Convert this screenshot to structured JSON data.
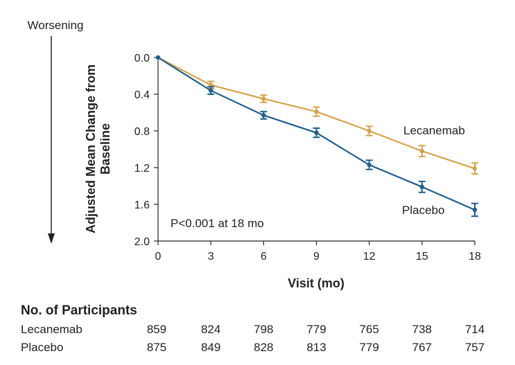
{
  "chart_data": {
    "type": "line",
    "x": [
      0,
      3,
      6,
      9,
      12,
      15,
      18
    ],
    "xlabel": "Visit (mo)",
    "ylabel_lines": [
      "Adjusted Mean Change from",
      "Baseline"
    ],
    "ylim": [
      0.0,
      2.0
    ],
    "yticks": [
      "0.0",
      "0.4",
      "0.8",
      "1.2",
      "1.6",
      "2.0"
    ],
    "y_inverted": true,
    "direction_label": "Worsening",
    "annotation": "P<0.001 at 18 mo",
    "series": [
      {
        "name": "Lecanemab",
        "color": "#d4a24c",
        "values": [
          0.0,
          0.3,
          0.45,
          0.59,
          0.8,
          1.02,
          1.21
        ],
        "err": [
          0.0,
          0.04,
          0.04,
          0.05,
          0.05,
          0.06,
          0.06
        ]
      },
      {
        "name": "Placebo",
        "color": "#1f5f8b",
        "values": [
          0.0,
          0.36,
          0.63,
          0.82,
          1.17,
          1.41,
          1.66
        ],
        "err": [
          0.0,
          0.04,
          0.04,
          0.05,
          0.05,
          0.06,
          0.07
        ]
      }
    ]
  },
  "participants": {
    "title": "No. of Participants",
    "rows": [
      {
        "label": "Lecanemab",
        "values": [
          "859",
          "824",
          "798",
          "779",
          "765",
          "738",
          "714"
        ]
      },
      {
        "label": "Placebo",
        "values": [
          "875",
          "849",
          "828",
          "813",
          "779",
          "767",
          "757"
        ]
      }
    ]
  }
}
